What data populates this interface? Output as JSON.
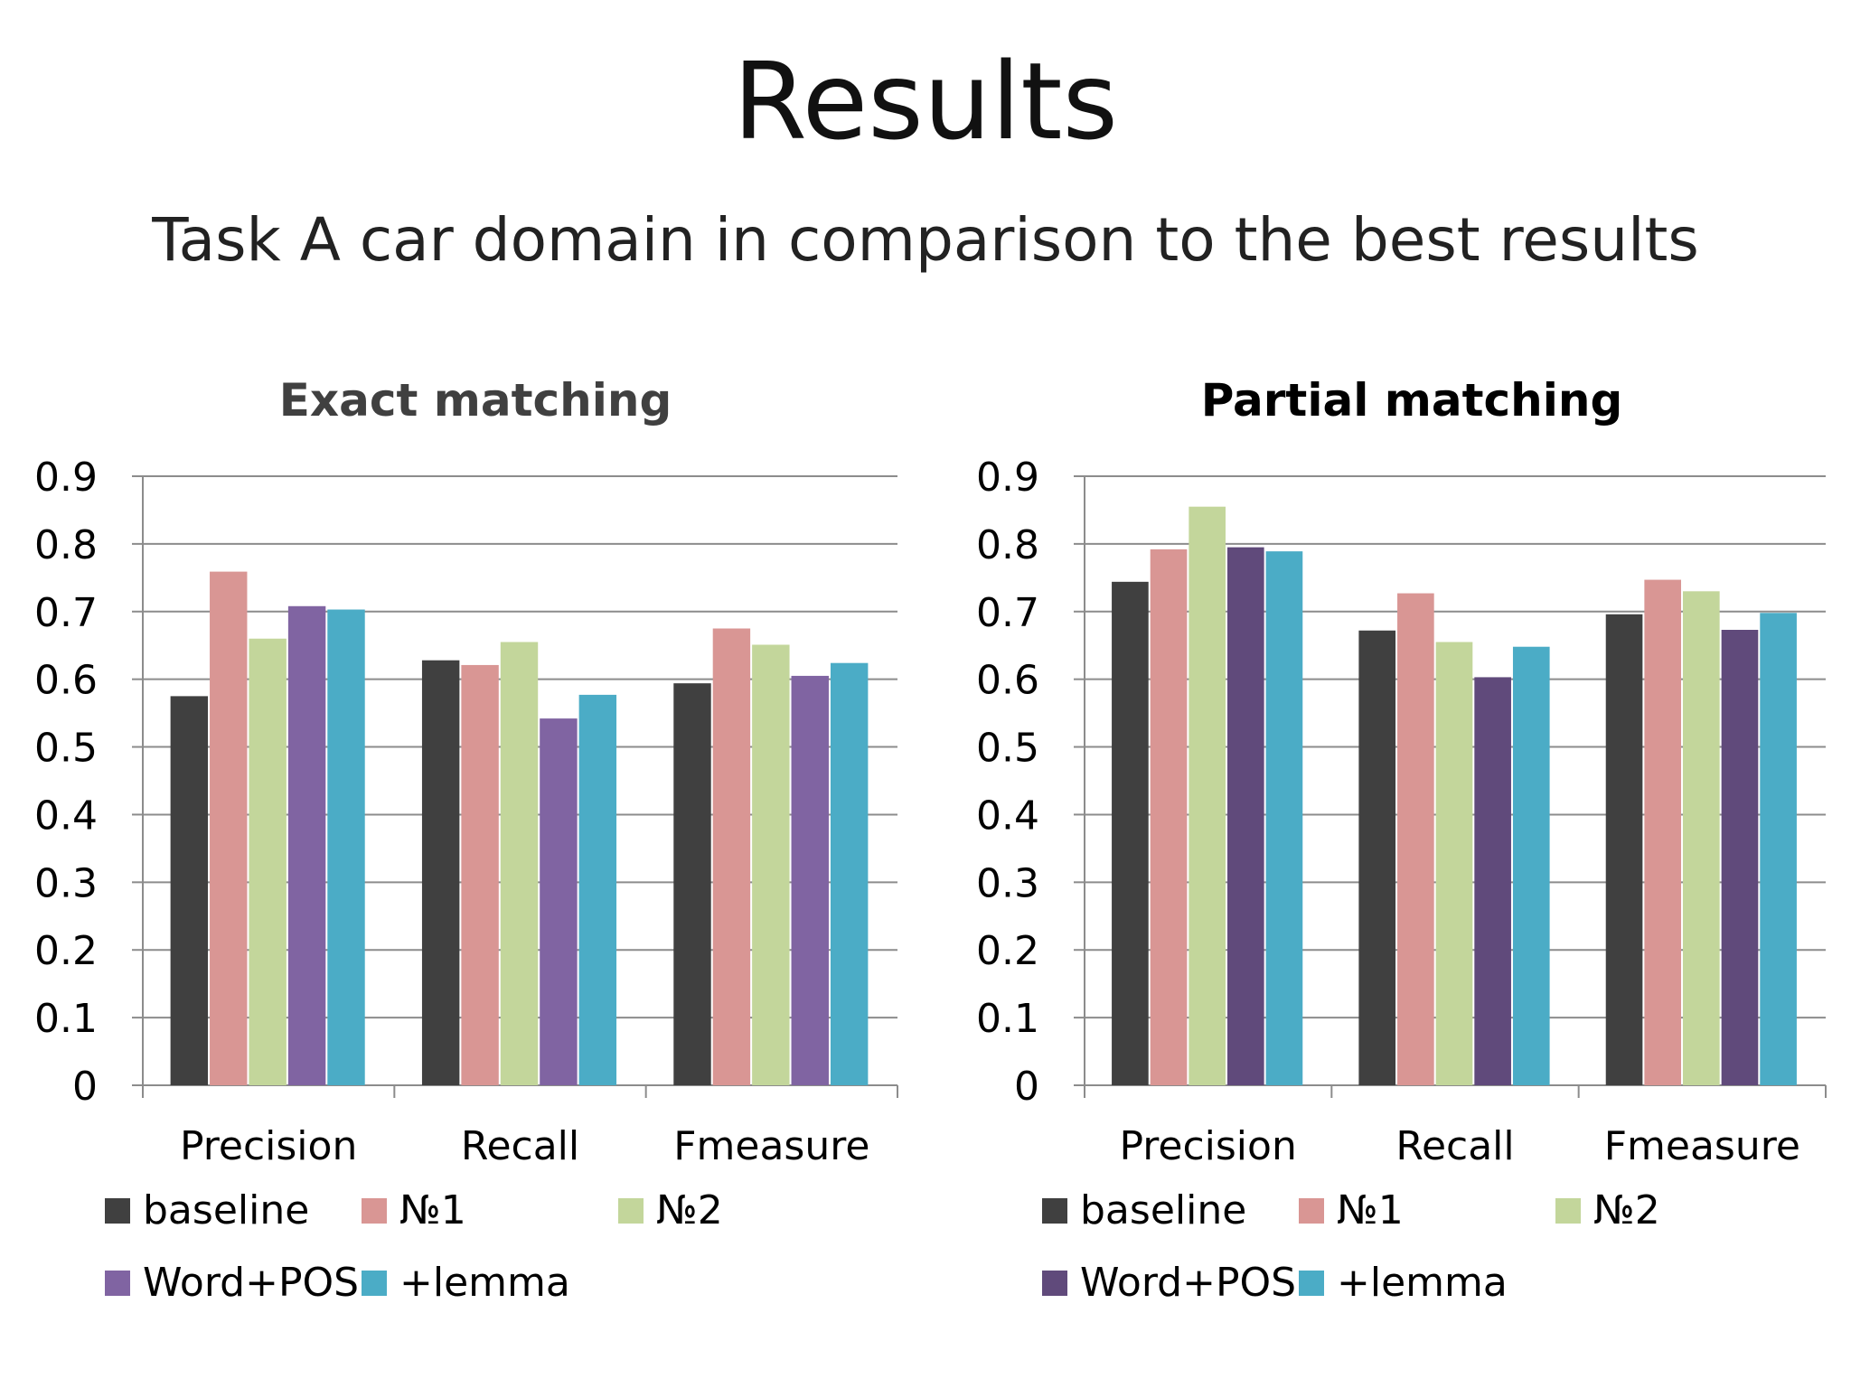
{
  "title": "Results",
  "subtitle": "Task A car domain in comparison to the best results",
  "chart_data": [
    {
      "type": "bar",
      "title": "Exact matching",
      "categories": [
        "Precision",
        "Recall",
        "Fmeasure"
      ],
      "ylim": [
        0,
        0.9
      ],
      "yticks": [
        "0",
        "0.1",
        "0.2",
        "0.3",
        "0.4",
        "0.5",
        "0.6",
        "0.7",
        "0.8",
        "0.9"
      ],
      "grid": true,
      "legend_position": "bottom",
      "series": [
        {
          "name": "baseline",
          "color": "#404040",
          "values": [
            0.575,
            0.628,
            0.594
          ]
        },
        {
          "name": "№1",
          "color": "#d99694",
          "values": [
            0.759,
            0.621,
            0.675
          ]
        },
        {
          "name": "№2",
          "color": "#c3d69b",
          "values": [
            0.66,
            0.655,
            0.651
          ]
        },
        {
          "name": "Word+POS",
          "color": "#8064a2",
          "values": [
            0.708,
            0.542,
            0.605
          ]
        },
        {
          "name": "+lemma",
          "color": "#4bacc6",
          "values": [
            0.703,
            0.577,
            0.624
          ]
        }
      ]
    },
    {
      "type": "bar",
      "title": "Partial matching",
      "categories": [
        "Precision",
        "Recall",
        "Fmeasure"
      ],
      "ylim": [
        0,
        0.9
      ],
      "yticks": [
        "0",
        "0.1",
        "0.2",
        "0.3",
        "0.4",
        "0.5",
        "0.6",
        "0.7",
        "0.8",
        "0.9"
      ],
      "grid": true,
      "legend_position": "bottom",
      "series": [
        {
          "name": "baseline",
          "color": "#404040",
          "values": [
            0.744,
            0.672,
            0.696
          ]
        },
        {
          "name": "№1",
          "color": "#d99694",
          "values": [
            0.792,
            0.727,
            0.747
          ]
        },
        {
          "name": "№2",
          "color": "#c3d69b",
          "values": [
            0.855,
            0.655,
            0.73
          ]
        },
        {
          "name": "Word+POS",
          "color": "#604a7b",
          "values": [
            0.795,
            0.603,
            0.673
          ]
        },
        {
          "name": "+lemma",
          "color": "#4bacc6",
          "values": [
            0.789,
            0.648,
            0.698
          ]
        }
      ]
    }
  ]
}
